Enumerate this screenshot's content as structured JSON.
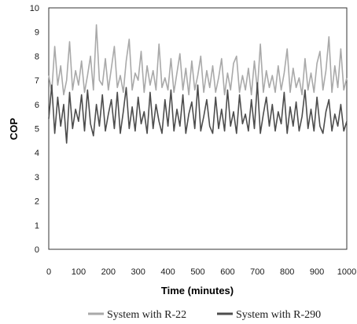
{
  "chart_data": {
    "type": "line",
    "title": "",
    "xlabel": "Time (minutes)",
    "ylabel": "COP",
    "xlim": [
      0,
      1000
    ],
    "ylim": [
      0,
      10
    ],
    "xticks": [
      "0",
      "100",
      "200",
      "300",
      "400",
      "500",
      "600",
      "700",
      "800",
      "900",
      "1000"
    ],
    "yticks": [
      "0",
      "1",
      "2",
      "3",
      "4",
      "5",
      "6",
      "7",
      "8",
      "9",
      "10"
    ],
    "grid": false,
    "legend_position": "bottom",
    "series": [
      {
        "name": "System with R-22",
        "color": "#a9a9a9",
        "x": [
          0,
          10,
          20,
          30,
          40,
          50,
          60,
          70,
          80,
          90,
          100,
          110,
          120,
          130,
          140,
          150,
          160,
          170,
          180,
          190,
          200,
          210,
          220,
          230,
          240,
          250,
          260,
          270,
          280,
          290,
          300,
          310,
          320,
          330,
          340,
          350,
          360,
          370,
          380,
          390,
          400,
          410,
          420,
          430,
          440,
          450,
          460,
          470,
          480,
          490,
          500,
          510,
          520,
          530,
          540,
          550,
          560,
          570,
          580,
          590,
          600,
          610,
          620,
          630,
          640,
          650,
          660,
          670,
          680,
          690,
          700,
          710,
          720,
          730,
          740,
          750,
          760,
          770,
          780,
          790,
          800,
          810,
          820,
          830,
          840,
          850,
          860,
          870,
          880,
          890,
          900,
          910,
          920,
          930,
          940,
          950,
          960,
          970,
          980,
          990,
          1000
        ],
        "values": [
          7.2,
          6.5,
          8.4,
          6.8,
          7.6,
          6.4,
          7.0,
          8.6,
          6.6,
          7.4,
          6.8,
          7.8,
          6.5,
          7.2,
          8.0,
          6.6,
          9.3,
          7.0,
          6.8,
          7.9,
          6.6,
          7.5,
          8.4,
          6.7,
          7.2,
          6.5,
          7.8,
          8.7,
          6.6,
          7.3,
          7.0,
          8.2,
          6.5,
          7.6,
          6.8,
          7.4,
          6.6,
          8.5,
          6.7,
          7.1,
          6.6,
          7.9,
          6.5,
          7.3,
          8.1,
          6.6,
          7.5,
          6.4,
          7.8,
          6.6,
          7.2,
          8.0,
          6.5,
          7.4,
          6.7,
          7.6,
          6.5,
          7.1,
          7.9,
          6.4,
          7.3,
          6.6,
          7.7,
          8.0,
          6.5,
          7.2,
          6.6,
          7.5,
          6.4,
          7.8,
          6.6,
          8.5,
          6.5,
          7.4,
          6.7,
          7.2,
          6.5,
          7.6,
          6.6,
          7.3,
          8.3,
          6.5,
          7.5,
          6.7,
          7.1,
          6.4,
          7.9,
          6.6,
          7.3,
          6.5,
          7.7,
          8.2,
          6.6,
          7.4,
          8.8,
          6.5,
          7.6,
          6.7,
          8.3,
          6.6,
          7.1
        ]
      },
      {
        "name": "System with R-290",
        "color": "#4d4d4d",
        "x": [
          0,
          10,
          20,
          30,
          40,
          50,
          60,
          70,
          80,
          90,
          100,
          110,
          120,
          130,
          140,
          150,
          160,
          170,
          180,
          190,
          200,
          210,
          220,
          230,
          240,
          250,
          260,
          270,
          280,
          290,
          300,
          310,
          320,
          330,
          340,
          350,
          360,
          370,
          380,
          390,
          400,
          410,
          420,
          430,
          440,
          450,
          460,
          470,
          480,
          490,
          500,
          510,
          520,
          530,
          540,
          550,
          560,
          570,
          580,
          590,
          600,
          610,
          620,
          630,
          640,
          650,
          660,
          670,
          680,
          690,
          700,
          710,
          720,
          730,
          740,
          750,
          760,
          770,
          780,
          790,
          800,
          810,
          820,
          830,
          840,
          850,
          860,
          870,
          880,
          890,
          900,
          910,
          920,
          930,
          940,
          950,
          960,
          970,
          980,
          990,
          1000
        ],
        "values": [
          5.4,
          6.8,
          4.8,
          6.3,
          5.1,
          6.0,
          4.4,
          6.5,
          5.0,
          5.8,
          5.3,
          6.4,
          4.9,
          6.6,
          5.2,
          4.7,
          6.0,
          5.1,
          6.4,
          4.9,
          5.6,
          6.2,
          5.0,
          6.5,
          4.8,
          5.7,
          6.7,
          5.0,
          5.9,
          4.9,
          6.3,
          5.2,
          5.7,
          4.8,
          6.5,
          5.0,
          6.0,
          5.3,
          4.8,
          6.2,
          5.1,
          6.6,
          4.9,
          5.8,
          5.1,
          6.4,
          4.8,
          5.6,
          6.1,
          5.0,
          6.8,
          4.9,
          5.5,
          6.2,
          5.1,
          4.8,
          6.3,
          5.0,
          5.8,
          4.9,
          6.6,
          5.1,
          5.7,
          4.8,
          6.4,
          5.2,
          5.6,
          4.9,
          6.2,
          5.0,
          6.9,
          4.8,
          5.6,
          6.3,
          5.1,
          6.0,
          4.9,
          5.7,
          5.2,
          6.5,
          4.8,
          5.9,
          5.1,
          6.1,
          4.9,
          5.5,
          6.6,
          5.0,
          5.8,
          4.9,
          6.3,
          5.1,
          4.8,
          5.7,
          6.2,
          4.9,
          5.6,
          5.1,
          6.0,
          4.9,
          5.3
        ]
      }
    ]
  }
}
